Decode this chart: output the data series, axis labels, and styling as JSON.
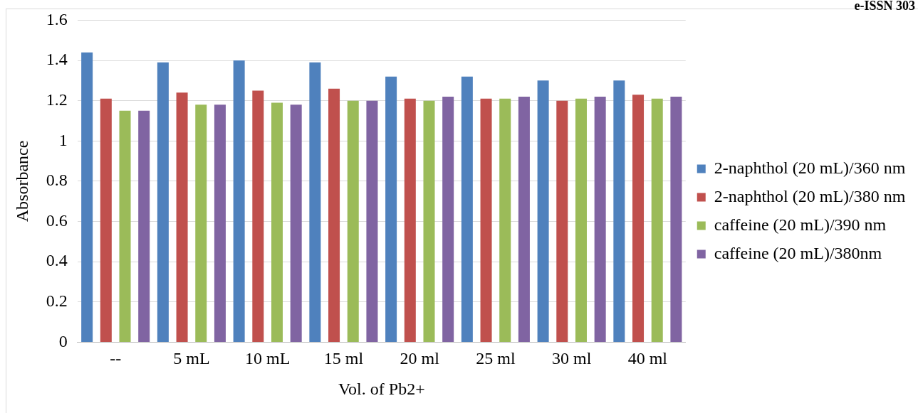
{
  "chart_data": {
    "type": "bar",
    "xlabel": "Vol. of Pb2+",
    "ylabel": "Absorbance",
    "annotations": [
      "e-ISSN 303"
    ],
    "categories": [
      "--",
      "5 mL",
      "10 mL",
      "15 ml",
      "20 ml",
      "25 ml",
      "30 ml",
      "40 ml"
    ],
    "series": [
      {
        "name": "2-naphthol (20 mL)/360 nm",
        "color": "#4f81bd",
        "values": [
          1.44,
          1.39,
          1.4,
          1.39,
          1.32,
          1.32,
          1.3,
          1.3
        ]
      },
      {
        "name": "2-naphthol (20 mL)/380 nm",
        "color": "#c0504d",
        "values": [
          1.21,
          1.24,
          1.25,
          1.26,
          1.21,
          1.21,
          1.2,
          1.23
        ]
      },
      {
        "name": "caffeine (20 mL)/390 nm",
        "color": "#9bbb59",
        "values": [
          1.15,
          1.18,
          1.19,
          1.2,
          1.2,
          1.21,
          1.21,
          1.21
        ]
      },
      {
        "name": "caffeine (20 mL)/380nm",
        "color": "#8064a2",
        "values": [
          1.15,
          1.18,
          1.18,
          1.2,
          1.22,
          1.22,
          1.22,
          1.22
        ]
      }
    ],
    "ylim": [
      0,
      1.6
    ],
    "yticks": [
      0,
      0.2,
      0.4,
      0.6,
      0.8,
      1,
      1.2,
      1.4,
      1.6
    ],
    "grid": "y",
    "legend": "right"
  }
}
